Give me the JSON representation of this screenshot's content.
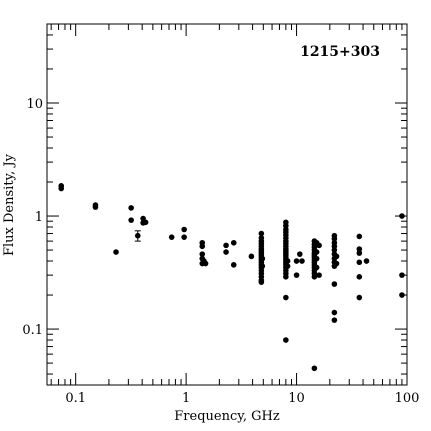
{
  "chart_data": {
    "type": "scatter",
    "title": "1215+303",
    "xlabel": "Frequency, GHz",
    "ylabel": "Flux Density, Jy",
    "xscale": "log",
    "yscale": "log",
    "xlim": [
      0.055,
      100
    ],
    "ylim": [
      0.032,
      50
    ],
    "grid": false,
    "xticks": [
      {
        "v": 0.1,
        "label": "0.1"
      },
      {
        "v": 1,
        "label": "1"
      },
      {
        "v": 10,
        "label": "10"
      },
      {
        "v": 100,
        "label": "100"
      }
    ],
    "yticks": [
      {
        "v": 0.1,
        "label": "0.1"
      },
      {
        "v": 1,
        "label": "1"
      },
      {
        "v": 10,
        "label": "10"
      }
    ],
    "points": [
      {
        "x": 0.074,
        "y": 1.85
      },
      {
        "x": 0.074,
        "y": 1.75
      },
      {
        "x": 0.151,
        "y": 1.25
      },
      {
        "x": 0.151,
        "y": 1.2
      },
      {
        "x": 0.232,
        "y": 0.48
      },
      {
        "x": 0.318,
        "y": 1.18
      },
      {
        "x": 0.318,
        "y": 0.92
      },
      {
        "x": 0.365,
        "y": 0.67,
        "err": [
          0.6,
          0.74
        ]
      },
      {
        "x": 0.408,
        "y": 0.95
      },
      {
        "x": 0.408,
        "y": 0.87
      },
      {
        "x": 0.43,
        "y": 0.88
      },
      {
        "x": 0.74,
        "y": 0.65
      },
      {
        "x": 0.96,
        "y": 0.76
      },
      {
        "x": 0.96,
        "y": 0.65
      },
      {
        "x": 1.4,
        "y": 0.58
      },
      {
        "x": 1.4,
        "y": 0.54
      },
      {
        "x": 1.4,
        "y": 0.46
      },
      {
        "x": 1.4,
        "y": 0.42
      },
      {
        "x": 1.4,
        "y": 0.38
      },
      {
        "x": 1.45,
        "y": 0.4
      },
      {
        "x": 1.5,
        "y": 0.38
      },
      {
        "x": 2.3,
        "y": 0.55
      },
      {
        "x": 2.3,
        "y": 0.48
      },
      {
        "x": 2.7,
        "y": 0.58
      },
      {
        "x": 2.7,
        "y": 0.37
      },
      {
        "x": 3.9,
        "y": 0.44
      },
      {
        "x": 4.8,
        "y": 0.7
      },
      {
        "x": 4.8,
        "y": 0.64
      },
      {
        "x": 4.8,
        "y": 0.6
      },
      {
        "x": 4.8,
        "y": 0.57
      },
      {
        "x": 4.8,
        "y": 0.54
      },
      {
        "x": 4.8,
        "y": 0.51
      },
      {
        "x": 4.8,
        "y": 0.49
      },
      {
        "x": 4.8,
        "y": 0.47
      },
      {
        "x": 4.8,
        "y": 0.45
      },
      {
        "x": 4.8,
        "y": 0.43
      },
      {
        "x": 4.8,
        "y": 0.41
      },
      {
        "x": 4.8,
        "y": 0.39
      },
      {
        "x": 4.8,
        "y": 0.37
      },
      {
        "x": 4.8,
        "y": 0.35
      },
      {
        "x": 4.8,
        "y": 0.33
      },
      {
        "x": 4.8,
        "y": 0.31
      },
      {
        "x": 4.8,
        "y": 0.29
      },
      {
        "x": 4.8,
        "y": 0.27
      },
      {
        "x": 4.8,
        "y": 0.26
      },
      {
        "x": 4.9,
        "y": 0.42
      },
      {
        "x": 4.9,
        "y": 0.36
      },
      {
        "x": 8.0,
        "y": 0.88
      },
      {
        "x": 8.0,
        "y": 0.82
      },
      {
        "x": 8.0,
        "y": 0.76
      },
      {
        "x": 8.0,
        "y": 0.72
      },
      {
        "x": 8.0,
        "y": 0.68
      },
      {
        "x": 8.0,
        "y": 0.64
      },
      {
        "x": 8.0,
        "y": 0.6
      },
      {
        "x": 8.0,
        "y": 0.57
      },
      {
        "x": 8.0,
        "y": 0.54
      },
      {
        "x": 8.0,
        "y": 0.51
      },
      {
        "x": 8.0,
        "y": 0.49
      },
      {
        "x": 8.0,
        "y": 0.47
      },
      {
        "x": 8.0,
        "y": 0.45
      },
      {
        "x": 8.0,
        "y": 0.43
      },
      {
        "x": 8.0,
        "y": 0.41
      },
      {
        "x": 8.0,
        "y": 0.39
      },
      {
        "x": 8.0,
        "y": 0.37
      },
      {
        "x": 8.0,
        "y": 0.35
      },
      {
        "x": 8.0,
        "y": 0.33
      },
      {
        "x": 8.0,
        "y": 0.31
      },
      {
        "x": 8.0,
        "y": 0.29
      },
      {
        "x": 8.0,
        "y": 0.19
      },
      {
        "x": 8.0,
        "y": 0.08
      },
      {
        "x": 8.3,
        "y": 0.4
      },
      {
        "x": 8.3,
        "y": 0.36
      },
      {
        "x": 10.0,
        "y": 0.4
      },
      {
        "x": 10.0,
        "y": 0.3
      },
      {
        "x": 10.7,
        "y": 0.46
      },
      {
        "x": 11.2,
        "y": 0.4
      },
      {
        "x": 14.5,
        "y": 0.6
      },
      {
        "x": 14.5,
        "y": 0.56
      },
      {
        "x": 14.5,
        "y": 0.53
      },
      {
        "x": 14.5,
        "y": 0.5
      },
      {
        "x": 14.5,
        "y": 0.47
      },
      {
        "x": 14.5,
        "y": 0.45
      },
      {
        "x": 14.5,
        "y": 0.43
      },
      {
        "x": 14.5,
        "y": 0.41
      },
      {
        "x": 14.5,
        "y": 0.39
      },
      {
        "x": 14.5,
        "y": 0.37
      },
      {
        "x": 14.5,
        "y": 0.35
      },
      {
        "x": 14.5,
        "y": 0.33
      },
      {
        "x": 14.5,
        "y": 0.31
      },
      {
        "x": 14.5,
        "y": 0.29
      },
      {
        "x": 14.5,
        "y": 0.045
      },
      {
        "x": 15.2,
        "y": 0.58
      },
      {
        "x": 15.2,
        "y": 0.48
      },
      {
        "x": 15.2,
        "y": 0.42
      },
      {
        "x": 15.2,
        "y": 0.35
      },
      {
        "x": 16.0,
        "y": 0.55
      },
      {
        "x": 16.0,
        "y": 0.3
      },
      {
        "x": 22.0,
        "y": 0.67
      },
      {
        "x": 22.0,
        "y": 0.63
      },
      {
        "x": 22.0,
        "y": 0.58
      },
      {
        "x": 22.0,
        "y": 0.54
      },
      {
        "x": 22.0,
        "y": 0.5
      },
      {
        "x": 22.0,
        "y": 0.46
      },
      {
        "x": 22.0,
        "y": 0.42
      },
      {
        "x": 22.0,
        "y": 0.39
      },
      {
        "x": 22.0,
        "y": 0.36
      },
      {
        "x": 22.0,
        "y": 0.25
      },
      {
        "x": 22.0,
        "y": 0.14
      },
      {
        "x": 22.0,
        "y": 0.12
      },
      {
        "x": 23.0,
        "y": 0.44
      },
      {
        "x": 23.0,
        "y": 0.38
      },
      {
        "x": 37.0,
        "y": 0.66
      },
      {
        "x": 37.0,
        "y": 0.51
      },
      {
        "x": 37.0,
        "y": 0.47
      },
      {
        "x": 37.0,
        "y": 0.39
      },
      {
        "x": 37.0,
        "y": 0.29
      },
      {
        "x": 37.0,
        "y": 0.19
      },
      {
        "x": 43.0,
        "y": 0.4
      },
      {
        "x": 90.0,
        "y": 1.0
      },
      {
        "x": 90.0,
        "y": 0.3
      },
      {
        "x": 90.0,
        "y": 0.2
      }
    ]
  }
}
